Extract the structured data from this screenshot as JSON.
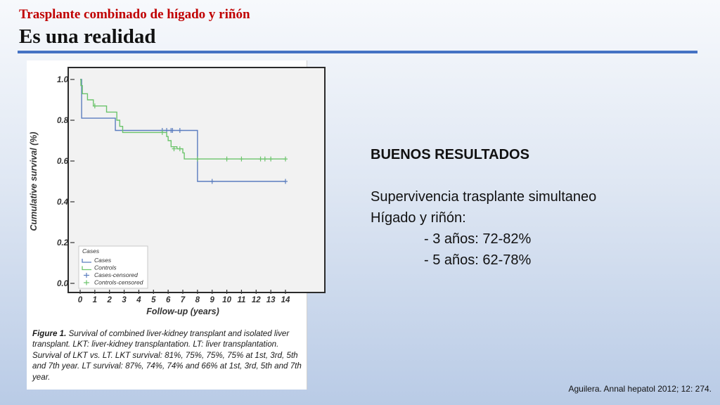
{
  "slide": {
    "subtitle": "Trasplante combinado de hígado y riñón",
    "title": "Es una realidad",
    "heading": "BUENOS RESULTADOS",
    "body_line1": "Supervivencia  trasplante simultaneo",
    "body_line2": "Hígado y riñón:",
    "bullet1": "- 3 años: 72-82%",
    "bullet2": "- 5 años: 62-78%",
    "citation": "Aguilera. Annal hepatol 2012; 12: 274."
  },
  "figure": {
    "caption_label": "Figure 1.",
    "caption_text": "Survival of combined liver-kidney transplant and isolated liver transplant. LKT: liver-kidney transplantation. LT: liver transplantation. Survival of LKT vs. LT. LKT survival: 81%, 75%, 75%, 75% at 1st, 3rd, 5th and 7th year. LT survival: 87%, 74%, 74% and 66% at 1st, 3rd, 5th and 7th year.",
    "legend_title": "Cases",
    "legend": [
      "Cases",
      "Controls",
      "Cases-censored",
      "Controls-censored"
    ]
  },
  "chart_data": {
    "type": "line",
    "xlabel": "Follow-up (years)",
    "ylabel": "Cumulative survival (%)",
    "xlim": [
      0,
      14
    ],
    "ylim": [
      0,
      1.0
    ],
    "x_ticks": [
      0,
      1,
      2,
      3,
      4,
      5,
      6,
      7,
      8,
      9,
      10,
      11,
      12,
      13,
      14
    ],
    "y_ticks": [
      "0.0",
      "0.2",
      "0.4",
      "0.6",
      "0.8",
      "1.0"
    ],
    "grid": false,
    "legend_position": "bottom-left",
    "colors": {
      "cases": "#5b7dbf",
      "controls": "#6cc46c"
    },
    "series": [
      {
        "name": "Cases",
        "steps": [
          [
            0,
            1.0
          ],
          [
            0.1,
            0.81
          ],
          [
            2.4,
            0.75
          ],
          [
            8.0,
            0.5
          ],
          [
            14,
            0.5
          ]
        ],
        "censored": [
          [
            5.6,
            0.75
          ],
          [
            5.9,
            0.75
          ],
          [
            6.2,
            0.75
          ],
          [
            6.3,
            0.75
          ],
          [
            6.8,
            0.75
          ],
          [
            9.0,
            0.5
          ],
          [
            14.0,
            0.5
          ]
        ]
      },
      {
        "name": "Controls",
        "steps": [
          [
            0,
            1.0
          ],
          [
            0.05,
            0.97
          ],
          [
            0.15,
            0.93
          ],
          [
            0.5,
            0.9
          ],
          [
            0.9,
            0.87
          ],
          [
            1.8,
            0.84
          ],
          [
            2.5,
            0.8
          ],
          [
            2.7,
            0.77
          ],
          [
            2.9,
            0.74
          ],
          [
            5.9,
            0.72
          ],
          [
            6.0,
            0.7
          ],
          [
            6.2,
            0.67
          ],
          [
            6.6,
            0.66
          ],
          [
            7.0,
            0.64
          ],
          [
            7.1,
            0.61
          ],
          [
            14,
            0.61
          ]
        ],
        "censored": [
          [
            1.0,
            0.87
          ],
          [
            5.6,
            0.74
          ],
          [
            6.4,
            0.66
          ],
          [
            6.8,
            0.66
          ],
          [
            8.0,
            0.61
          ],
          [
            10.0,
            0.61
          ],
          [
            11.0,
            0.61
          ],
          [
            12.3,
            0.61
          ],
          [
            12.6,
            0.61
          ],
          [
            13.0,
            0.61
          ],
          [
            14.0,
            0.61
          ]
        ]
      }
    ]
  }
}
